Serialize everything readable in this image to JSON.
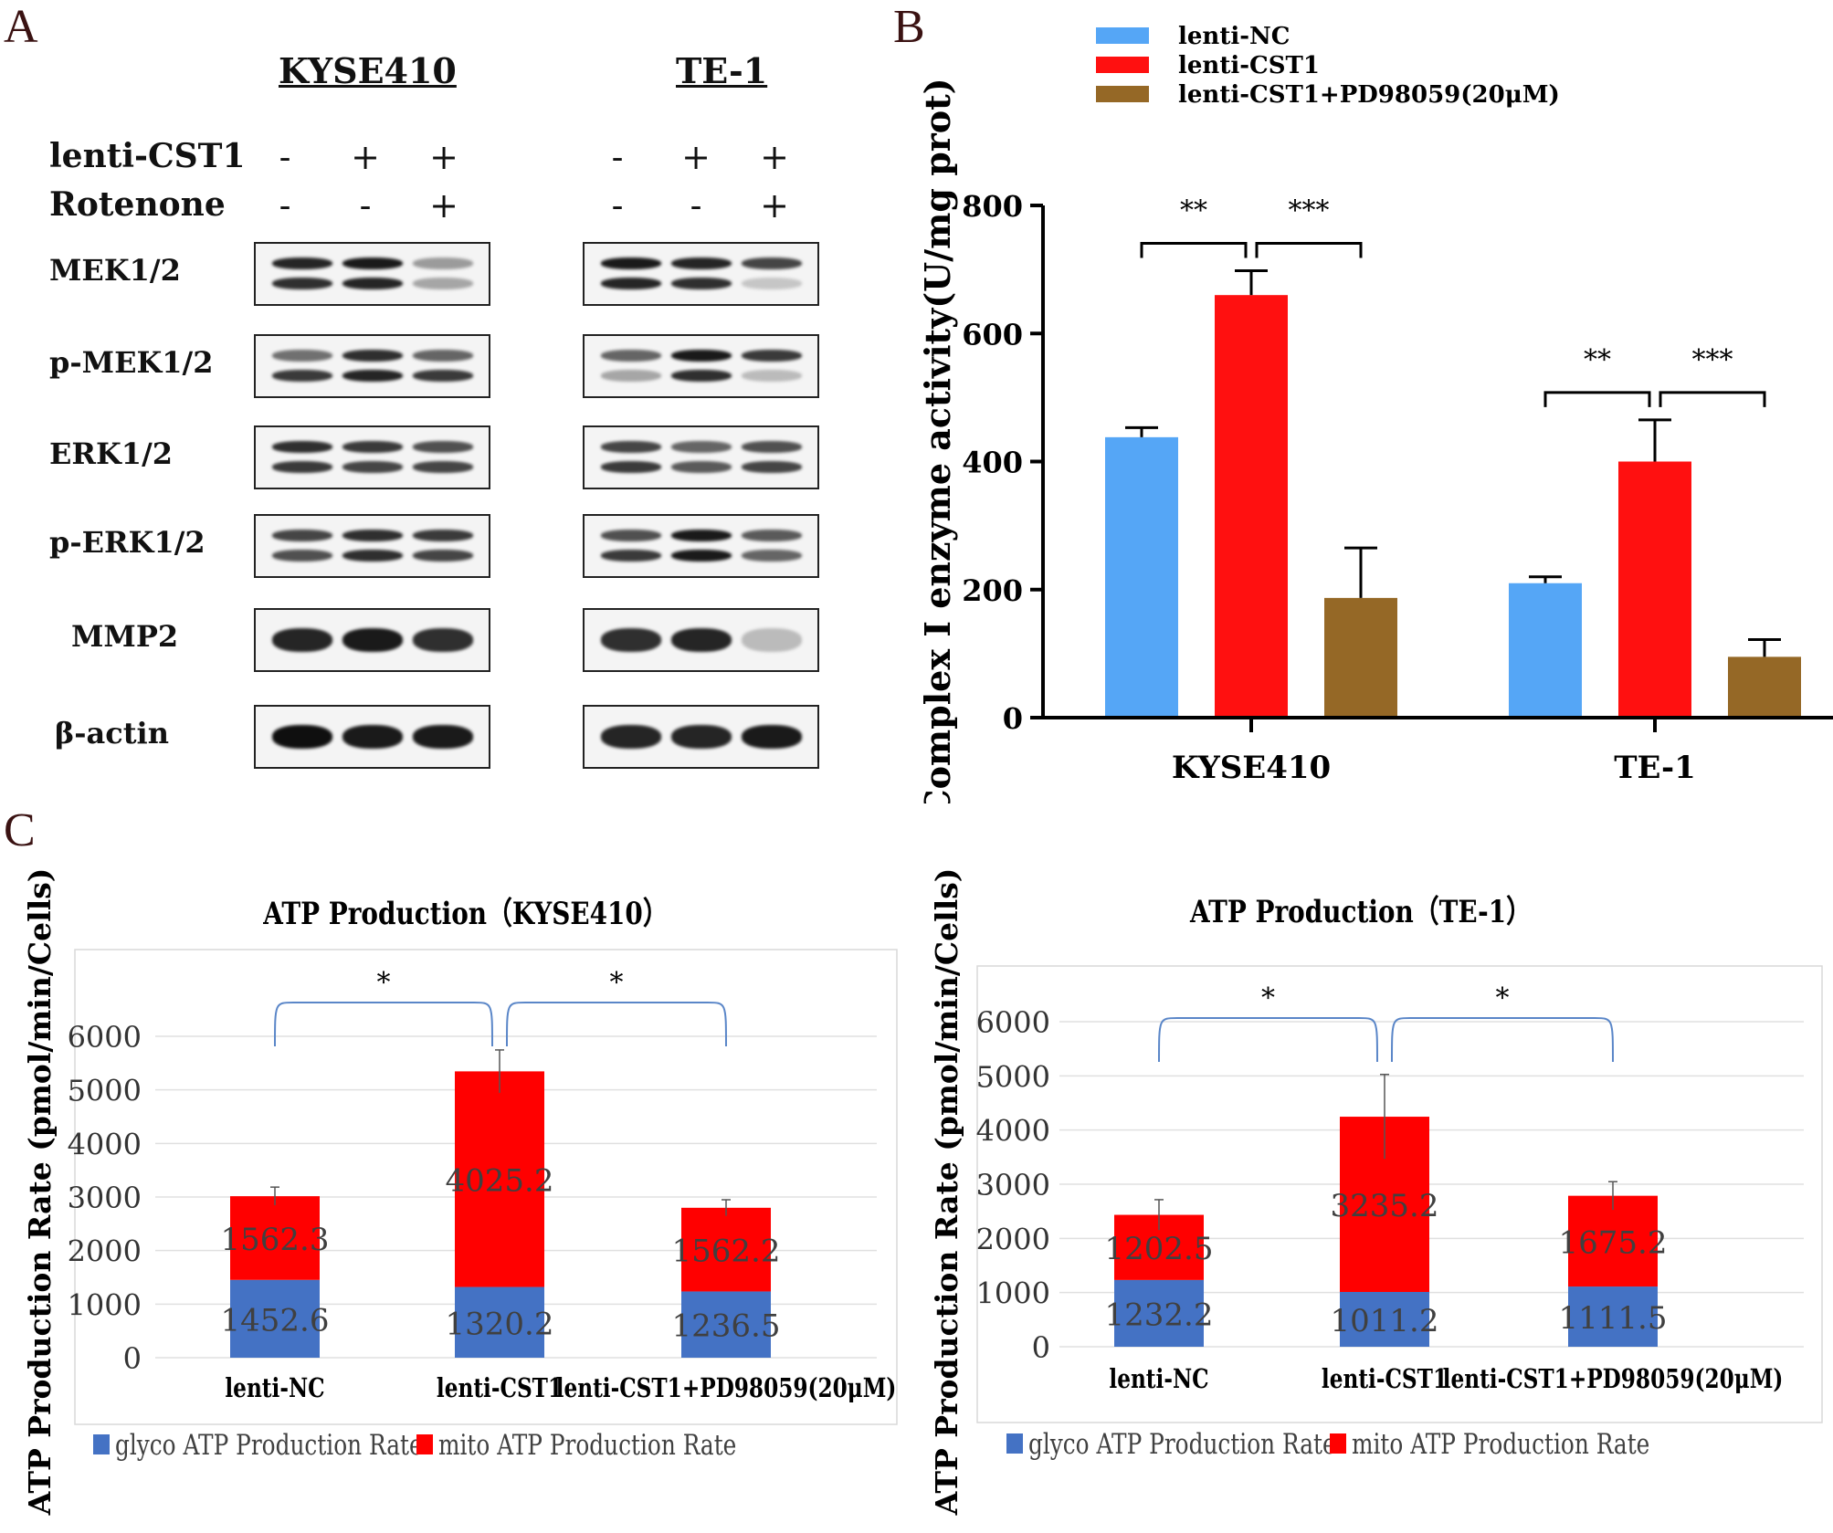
{
  "panels": {
    "a": "A",
    "b": "B",
    "c": "C"
  },
  "panel_a": {
    "cell_lines": [
      "KYSE410",
      "TE-1"
    ],
    "treatments": [
      {
        "name": "lenti-CST1",
        "signs": [
          "-",
          "+",
          "+"
        ]
      },
      {
        "name": "Rotenone",
        "signs": [
          "-",
          "-",
          "+"
        ]
      }
    ],
    "proteins": [
      {
        "name": "MEK1/2",
        "kyse410": [
          [
            0.9,
            0.85
          ],
          [
            0.95,
            0.9
          ],
          [
            0.35,
            0.3
          ]
        ],
        "te1": [
          [
            0.95,
            0.9
          ],
          [
            0.9,
            0.85
          ],
          [
            0.75,
            0.15
          ]
        ]
      },
      {
        "name": "p-MEK1/2",
        "kyse410": [
          [
            0.55,
            0.8
          ],
          [
            0.85,
            0.9
          ],
          [
            0.6,
            0.8
          ]
        ],
        "te1": [
          [
            0.6,
            0.3
          ],
          [
            0.95,
            0.85
          ],
          [
            0.8,
            0.2
          ]
        ]
      },
      {
        "name": "ERK1/2",
        "kyse410": [
          [
            0.85,
            0.8
          ],
          [
            0.8,
            0.75
          ],
          [
            0.7,
            0.75
          ]
        ],
        "te1": [
          [
            0.75,
            0.8
          ],
          [
            0.6,
            0.65
          ],
          [
            0.7,
            0.75
          ]
        ]
      },
      {
        "name": "p-ERK1/2",
        "kyse410": [
          [
            0.75,
            0.7
          ],
          [
            0.85,
            0.85
          ],
          [
            0.8,
            0.75
          ]
        ],
        "te1": [
          [
            0.7,
            0.8
          ],
          [
            0.95,
            0.95
          ],
          [
            0.65,
            0.6
          ]
        ]
      },
      {
        "name": "MMP2",
        "kyse410": [
          [
            0.9
          ],
          [
            0.95
          ],
          [
            0.85
          ]
        ],
        "te1": [
          [
            0.85
          ],
          [
            0.9
          ],
          [
            0.2
          ]
        ]
      },
      {
        "name": "β-actin",
        "kyse410": [
          [
            1.0
          ],
          [
            0.95
          ],
          [
            0.95
          ]
        ],
        "te1": [
          [
            0.9
          ],
          [
            0.9
          ],
          [
            0.95
          ]
        ]
      }
    ]
  },
  "colors": {
    "nc": "#55a6f6",
    "cst1": "#ff1010",
    "pd": "#956826",
    "glyco": "#4472c4",
    "mito": "#ff0000",
    "bracket": "#5a86c8"
  },
  "chart_data": [
    {
      "type": "bar",
      "ylabel": "Complex I enzyme activity(U/mg prot)",
      "categories": [
        "KYSE410",
        "TE-1"
      ],
      "ylim": [
        0,
        800
      ],
      "yticks": [
        "0",
        "200",
        "400",
        "600",
        "800"
      ],
      "legend": "top",
      "series": [
        {
          "name": "lenti-NC",
          "values": [
            438,
            210
          ],
          "errors": [
            15,
            10
          ]
        },
        {
          "name": "lenti-CST1",
          "values": [
            660,
            400
          ],
          "errors": [
            38,
            65
          ]
        },
        {
          "name": "lenti-CST1+PD98059(20μM)",
          "values": [
            187,
            95
          ],
          "errors": [
            78,
            27
          ]
        }
      ],
      "significance": [
        {
          "group": 0,
          "from": 0,
          "to": 1,
          "label": "**"
        },
        {
          "group": 0,
          "from": 1,
          "to": 2,
          "label": "***"
        },
        {
          "group": 1,
          "from": 0,
          "to": 1,
          "label": "**"
        },
        {
          "group": 1,
          "from": 1,
          "to": 2,
          "label": "***"
        }
      ]
    },
    {
      "type": "bar",
      "stacked": true,
      "title": "ATP Production（KYSE410）",
      "ylabel": "ATP Production Rate (pmol/min/Cells)",
      "categories": [
        "lenti-NC",
        "lenti-CST1",
        "lenti-CST1+PD98059(20μM)"
      ],
      "ylim": [
        0,
        6000
      ],
      "yticks": [
        "0",
        "1000",
        "2000",
        "3000",
        "4000",
        "5000",
        "6000"
      ],
      "legend": "bottom",
      "series": [
        {
          "name": "glyco ATP Production Rate",
          "values": [
            1452.6,
            1320.2,
            1236.5
          ],
          "labels": [
            "1452.6",
            "1320.2",
            "1236.5"
          ]
        },
        {
          "name": "mito ATP Production Rate",
          "values": [
            1562.3,
            4025.2,
            1562.2
          ],
          "labels": [
            "1562.3",
            "4025.2",
            "1562.2"
          ],
          "errors": [
            170,
            400,
            150
          ]
        }
      ],
      "significance": [
        {
          "from": 0,
          "to": 1,
          "label": "*"
        },
        {
          "from": 1,
          "to": 2,
          "label": "*"
        }
      ]
    },
    {
      "type": "bar",
      "stacked": true,
      "title": "ATP Production（TE-1）",
      "ylabel": "ATP Production Rate (pmol/min/Cells)",
      "categories": [
        "lenti-NC",
        "lenti-CST1",
        "lenti-CST1+PD98059(20μM)"
      ],
      "ylim": [
        0,
        6000
      ],
      "yticks": [
        "0",
        "1000",
        "2000",
        "3000",
        "4000",
        "5000",
        "6000"
      ],
      "legend": "bottom",
      "series": [
        {
          "name": "glyco ATP Production Rate",
          "values": [
            1232.2,
            1011.2,
            1111.5
          ],
          "labels": [
            "1232.2",
            "1011.2",
            "1111.5"
          ]
        },
        {
          "name": "mito ATP Production Rate",
          "values": [
            1202.5,
            3235.2,
            1675.2
          ],
          "labels": [
            "1202.5",
            "3235.2",
            "1675.2"
          ],
          "errors": [
            280,
            780,
            260
          ]
        }
      ],
      "significance": [
        {
          "from": 0,
          "to": 1,
          "label": "*"
        },
        {
          "from": 1,
          "to": 2,
          "label": "*"
        }
      ]
    }
  ]
}
